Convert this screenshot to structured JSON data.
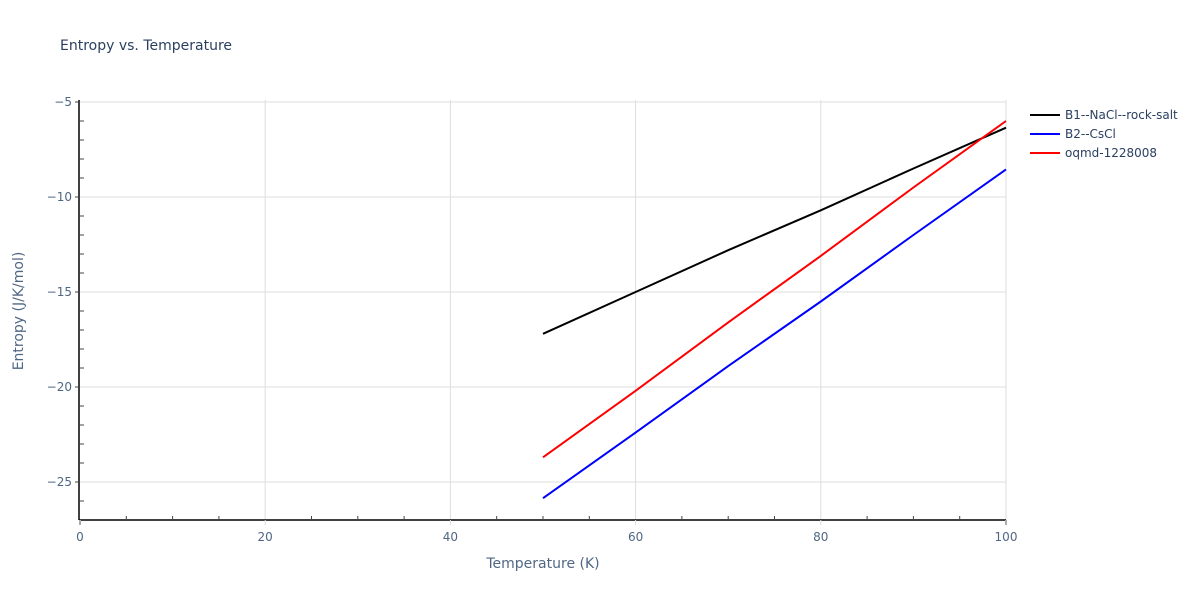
{
  "chart_data": {
    "type": "line",
    "title": "Entropy vs. Temperature",
    "xlabel": "Temperature (K)",
    "ylabel": "Entropy (J/K/mol)",
    "xlim": [
      0,
      100
    ],
    "ylim": [
      -27,
      -4.9
    ],
    "x_ticks": [
      0,
      20,
      40,
      60,
      80,
      100
    ],
    "x_tick_labels": [
      "0",
      "20",
      "40",
      "60",
      "80",
      "100"
    ],
    "x_minor_step": 5,
    "y_ticks": [
      -25,
      -20,
      -15,
      -10,
      -5
    ],
    "y_tick_labels": [
      "−25",
      "−20",
      "−15",
      "−10",
      "−5"
    ],
    "y_minor_step": 1,
    "grid": true,
    "legend_position": "right-top",
    "series": [
      {
        "name": "B1--NaCl--rock-salt",
        "color": "#000000",
        "x": [
          50,
          60,
          70,
          80,
          90,
          100
        ],
        "y": [
          -17.2,
          -15.0,
          -12.8,
          -10.7,
          -8.5,
          -6.35
        ]
      },
      {
        "name": "B2--CsCl",
        "color": "#0000ff",
        "x": [
          50,
          60,
          70,
          80,
          90,
          100
        ],
        "y": [
          -25.85,
          -22.4,
          -18.9,
          -15.5,
          -12.0,
          -8.55
        ]
      },
      {
        "name": "oqmd-1228008",
        "color": "#ff0000",
        "x": [
          50,
          60,
          70,
          80,
          90,
          100
        ],
        "y": [
          -23.7,
          -20.2,
          -16.6,
          -13.1,
          -9.5,
          -6.0
        ]
      }
    ]
  }
}
